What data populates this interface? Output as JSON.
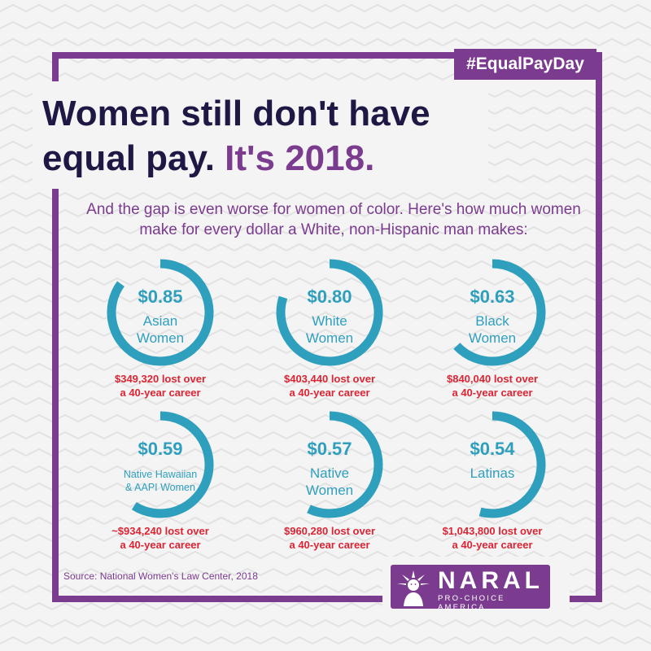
{
  "hashtag": "#EqualPayDay",
  "title": {
    "line1": "Women still don't have",
    "line2_start": "equal pay.",
    "line2_highlight": "It's 2018."
  },
  "subtitle": "And the gap is even worse for women of color. Here's how much women make for every dollar a White, non-Hispanic man makes:",
  "source": "Source: National Women's Law Center, 2018",
  "logo": {
    "name": "NARAL",
    "tagline": "PRO-CHOICE AMERICA"
  },
  "colors": {
    "purple": "#7b3b8f",
    "navy": "#1e1844",
    "ring": "#2e9fbd",
    "loss": "#dc2433",
    "background": "#f4f4f4"
  },
  "chart_data": {
    "type": "pie",
    "unit": "dollars earned per $1.00 paid to a White, non-Hispanic man",
    "items": [
      {
        "value_label": "$0.85",
        "value": 0.85,
        "label_lines": [
          "Asian",
          "Women"
        ],
        "loss_lines": [
          "$349,320 lost over",
          "a 40-year career"
        ]
      },
      {
        "value_label": "$0.80",
        "value": 0.8,
        "label_lines": [
          "White",
          "Women"
        ],
        "loss_lines": [
          "$403,440 lost over",
          "a 40-year career"
        ]
      },
      {
        "value_label": "$0.63",
        "value": 0.63,
        "label_lines": [
          "Black",
          "Women"
        ],
        "loss_lines": [
          "$840,040 lost over",
          "a 40-year career"
        ]
      },
      {
        "value_label": "$0.59",
        "value": 0.59,
        "label_lines": [
          "Native Hawaiian",
          "& AAPI Women"
        ],
        "loss_lines": [
          "~$934,240 lost over",
          "a 40-year career"
        ]
      },
      {
        "value_label": "$0.57",
        "value": 0.57,
        "label_lines": [
          "Native",
          "Women"
        ],
        "loss_lines": [
          "$960,280 lost over",
          "a 40-year career"
        ]
      },
      {
        "value_label": "$0.54",
        "value": 0.54,
        "label_lines": [
          "Latinas"
        ],
        "loss_lines": [
          "$1,043,800 lost over",
          "a 40-year career"
        ]
      }
    ]
  }
}
